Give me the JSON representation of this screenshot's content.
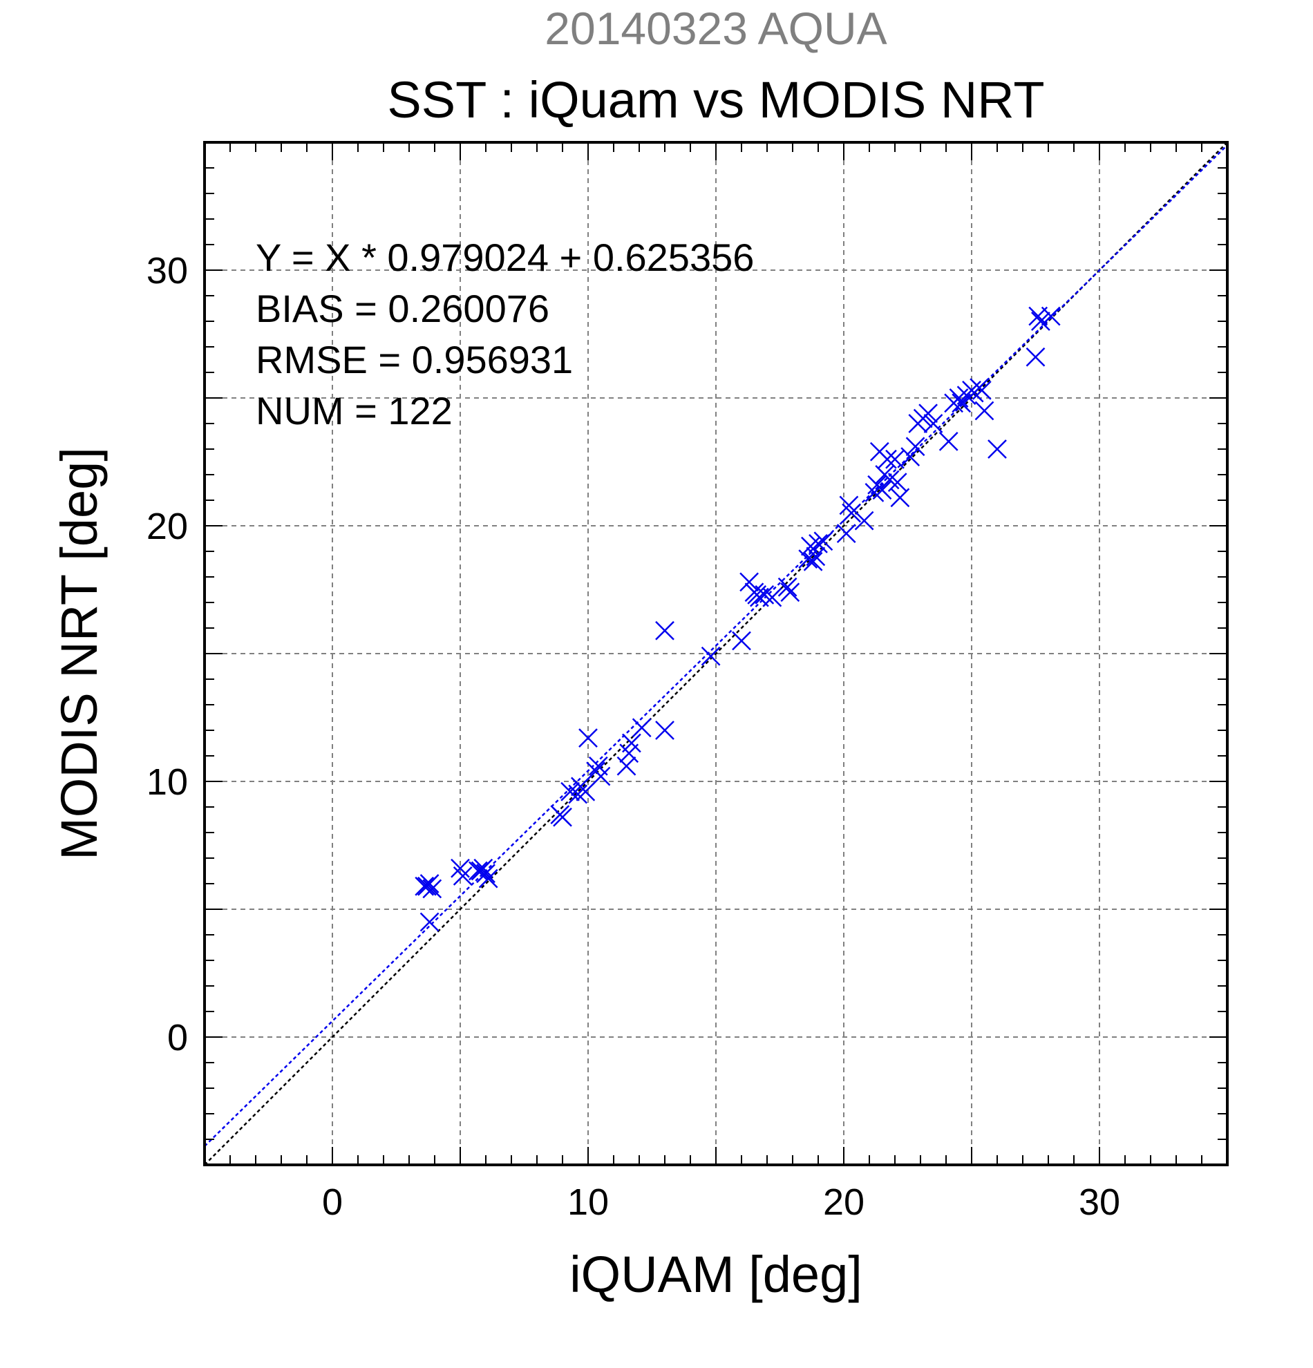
{
  "chart_data": {
    "type": "scatter",
    "title": "SST : iQuam vs MODIS NRT",
    "subtitle": "20140323 AQUA",
    "xlabel": "iQUAM [deg]",
    "ylabel": "MODIS NRT [deg]",
    "xlim": [
      -5,
      35
    ],
    "ylim": [
      -5,
      35
    ],
    "x_ticks": [
      0,
      10,
      20,
      30
    ],
    "y_ticks": [
      0,
      10,
      20,
      30
    ],
    "x_tick_labels": [
      "0",
      "10",
      "20",
      "30"
    ],
    "y_tick_labels": [
      "0",
      "10",
      "20",
      "30"
    ],
    "grid": true,
    "colors": {
      "subtitle": "#808080",
      "points": "#0000ee",
      "fit_line": "#0000ee",
      "identity_line": "#000000",
      "grid": "#808080"
    },
    "stats": [
      "Y = X * 0.979024 + 0.625356",
      "BIAS = 0.260076",
      "RMSE = 0.956931",
      "NUM = 122"
    ],
    "fit": {
      "slope": 0.979024,
      "intercept": 0.625356
    },
    "identity": {
      "slope": 1,
      "intercept": 0
    },
    "series": [
      {
        "marker": "x",
        "x": [
          3.6,
          3.7,
          3.8,
          3.9,
          3.8,
          5.0,
          5.1,
          5.8,
          5.9,
          6.0,
          6.1,
          5.7,
          8.9,
          9.0,
          9.3,
          9.6,
          9.7,
          9.9,
          10.0,
          10.3,
          10.4,
          10.5,
          11.5,
          11.6,
          11.7,
          12.1,
          13.0,
          13.0,
          14.8,
          16.0,
          16.3,
          16.5,
          16.6,
          16.7,
          16.9,
          17.2,
          17.8,
          17.9,
          18.6,
          18.7,
          18.8,
          18.9,
          19.0,
          19.2,
          20.1,
          20.2,
          20.3,
          20.8,
          21.2,
          21.3,
          21.4,
          21.5,
          21.6,
          21.7,
          21.8,
          22.0,
          22.1,
          22.2,
          22.6,
          22.8,
          22.9,
          23.1,
          23.3,
          23.5,
          24.1,
          24.3,
          24.5,
          24.6,
          24.8,
          25.0,
          25.1,
          25.3,
          25.4,
          25.5,
          26.0,
          27.5,
          27.6,
          27.7,
          28.1
        ],
        "y": [
          5.9,
          5.9,
          6.0,
          5.8,
          4.5,
          6.6,
          6.3,
          6.5,
          6.6,
          6.4,
          6.2,
          6.5,
          8.7,
          8.6,
          9.6,
          9.5,
          9.8,
          9.6,
          11.7,
          10.4,
          10.6,
          10.2,
          10.6,
          11.1,
          11.5,
          12.1,
          15.9,
          12.0,
          14.9,
          15.5,
          17.8,
          17.4,
          17.3,
          17.2,
          17.3,
          17.2,
          17.6,
          17.4,
          18.7,
          19.2,
          18.6,
          18.8,
          19.3,
          19.4,
          19.7,
          20.8,
          20.5,
          20.2,
          21.3,
          21.6,
          22.9,
          21.4,
          22.0,
          22.6,
          21.8,
          22.6,
          21.7,
          21.1,
          22.7,
          23.1,
          24.0,
          24.2,
          24.4,
          24.0,
          23.3,
          24.8,
          25.0,
          24.8,
          25.1,
          25.3,
          25.2,
          25.4,
          25.3,
          24.5,
          23.0,
          26.6,
          28.2,
          28.0,
          28.2
        ]
      }
    ]
  }
}
